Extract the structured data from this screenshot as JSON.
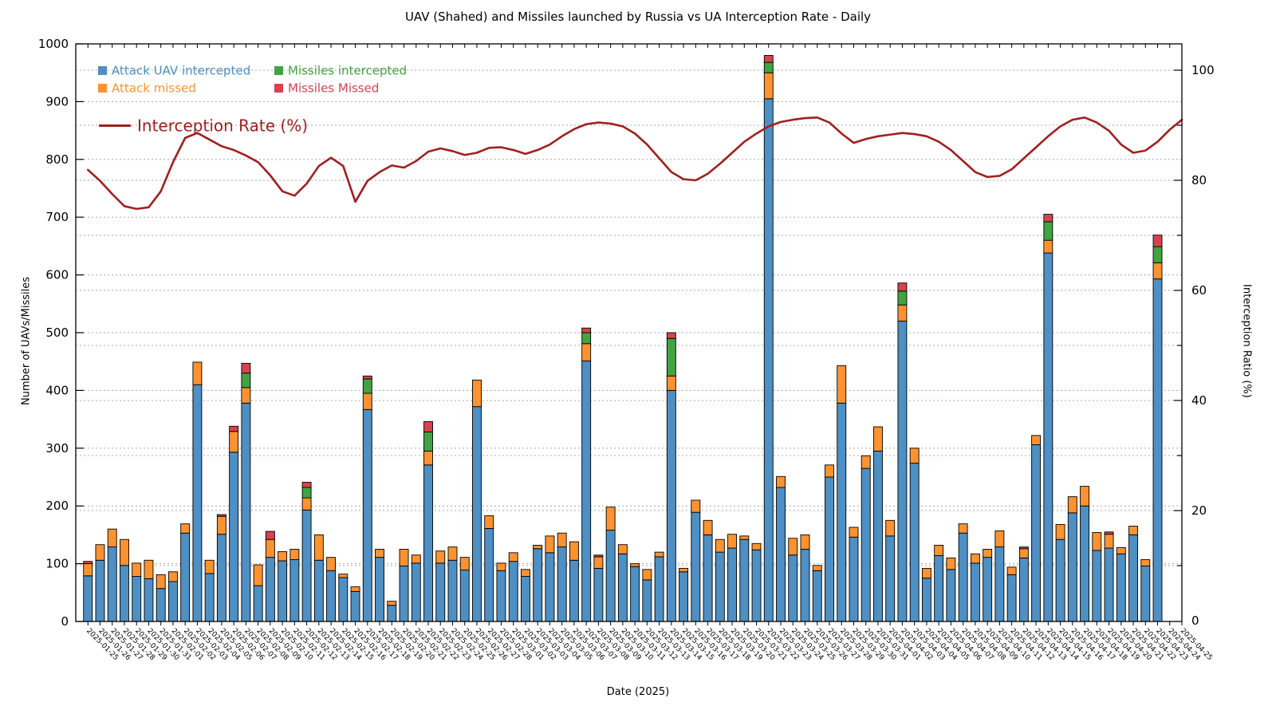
{
  "chart_data": {
    "type": "bar",
    "stacked": true,
    "title": "UAV (Shahed) and Missiles launched by Russia vs UA Interception Rate - Daily",
    "xlabel": "Date (2025)",
    "ylabel_left": "Number of UAVs/Missiles",
    "ylabel_right": "Interception Ratio (%)",
    "ylim_left": [
      0,
      1000
    ],
    "ylim_right": [
      0,
      100
    ],
    "grid": "dotted, horizontal, both axes",
    "legend_position": "top-left inside plot",
    "dates": [
      "2025-01-25",
      "2025-01-26",
      "2025-01-27",
      "2025-01-28",
      "2025-01-29",
      "2025-01-30",
      "2025-01-31",
      "2025-02-01",
      "2025-02-02",
      "2025-02-03",
      "2025-02-04",
      "2025-02-05",
      "2025-02-06",
      "2025-02-07",
      "2025-02-08",
      "2025-02-09",
      "2025-02-10",
      "2025-02-11",
      "2025-02-12",
      "2025-02-13",
      "2025-02-14",
      "2025-02-15",
      "2025-02-16",
      "2025-02-17",
      "2025-02-18",
      "2025-02-19",
      "2025-02-20",
      "2025-02-21",
      "2025-02-22",
      "2025-02-23",
      "2025-02-24",
      "2025-02-25",
      "2025-02-26",
      "2025-02-27",
      "2025-02-28",
      "2025-03-01",
      "2025-03-02",
      "2025-03-03",
      "2025-03-04",
      "2025-03-05",
      "2025-03-06",
      "2025-03-07",
      "2025-03-08",
      "2025-03-09",
      "2025-03-10",
      "2025-03-11",
      "2025-03-12",
      "2025-03-13",
      "2025-03-14",
      "2025-03-15",
      "2025-03-16",
      "2025-03-17",
      "2025-03-18",
      "2025-03-19",
      "2025-03-20",
      "2025-03-21",
      "2025-03-22",
      "2025-03-23",
      "2025-03-24",
      "2025-03-25",
      "2025-03-26",
      "2025-03-27",
      "2025-03-28",
      "2025-03-29",
      "2025-03-30",
      "2025-03-31",
      "2025-04-01",
      "2025-04-02",
      "2025-04-03",
      "2025-04-04",
      "2025-04-05",
      "2025-04-06",
      "2025-04-07",
      "2025-04-08",
      "2025-04-09",
      "2025-04-10",
      "2025-04-11",
      "2025-04-12",
      "2025-04-13",
      "2025-04-14",
      "2025-04-15",
      "2025-04-16",
      "2025-04-17",
      "2025-04-18",
      "2025-04-19",
      "2025-04-20",
      "2025-04-21",
      "2025-04-22",
      "2025-04-23",
      "2025-04-24",
      "2025-04-25"
    ],
    "series": [
      {
        "name": "Attack UAV intercepted",
        "color": "#4e8fc4",
        "values": [
          79,
          106,
          129,
          97,
          78,
          74,
          57,
          69,
          153,
          410,
          83,
          151,
          293,
          378,
          62,
          111,
          105,
          107,
          193,
          106,
          88,
          76,
          52,
          367,
          111,
          28,
          96,
          101,
          271,
          101,
          106,
          89,
          372,
          161,
          88,
          104,
          78,
          126,
          119,
          129,
          106,
          451,
          92,
          158,
          117,
          95,
          72,
          112,
          400,
          86,
          189,
          150,
          120,
          127,
          142,
          124,
          905,
          232,
          115,
          125,
          88,
          250,
          378,
          146,
          265,
          295,
          148,
          520,
          274,
          75,
          114,
          90,
          153,
          101,
          111,
          129,
          81,
          110,
          306,
          638,
          142,
          188,
          200,
          123,
          127,
          117,
          150,
          96,
          593,
          0,
          0
        ]
      },
      {
        "name": "Attack missed",
        "color": "#fd9231",
        "values": [
          21,
          27,
          31,
          45,
          23,
          32,
          24,
          17,
          16,
          39,
          23,
          31,
          36,
          27,
          36,
          31,
          16,
          18,
          21,
          44,
          23,
          6,
          8,
          28,
          14,
          7,
          29,
          14,
          24,
          21,
          23,
          22,
          46,
          22,
          13,
          15,
          12,
          6,
          29,
          24,
          32,
          30,
          20,
          40,
          16,
          5,
          18,
          8,
          25,
          6,
          21,
          25,
          22,
          24,
          6,
          11,
          45,
          19,
          29,
          25,
          9,
          21,
          65,
          17,
          22,
          42,
          27,
          28,
          26,
          17,
          18,
          20,
          16,
          16,
          14,
          28,
          13,
          16,
          16,
          22,
          26,
          28,
          34,
          31,
          24,
          11,
          15,
          11,
          28,
          0,
          0
        ]
      },
      {
        "name": "Missiles intercepted",
        "color": "#42a342",
        "values": [
          0,
          0,
          0,
          0,
          0,
          0,
          0,
          0,
          0,
          0,
          0,
          0,
          0,
          25,
          0,
          0,
          0,
          0,
          18,
          0,
          0,
          0,
          0,
          25,
          0,
          0,
          0,
          0,
          33,
          0,
          0,
          0,
          0,
          0,
          0,
          0,
          0,
          0,
          0,
          0,
          0,
          19,
          0,
          0,
          0,
          0,
          0,
          0,
          65,
          0,
          0,
          0,
          0,
          0,
          0,
          0,
          18,
          0,
          0,
          0,
          0,
          0,
          0,
          0,
          0,
          0,
          0,
          24,
          0,
          0,
          0,
          0,
          0,
          0,
          0,
          0,
          0,
          0,
          0,
          32,
          0,
          0,
          0,
          0,
          0,
          0,
          0,
          0,
          28,
          0,
          0
        ]
      },
      {
        "name": "Missiles Missed",
        "color": "#d6434e",
        "values": [
          4,
          0,
          0,
          0,
          0,
          0,
          0,
          0,
          0,
          0,
          0,
          3,
          9,
          17,
          0,
          14,
          0,
          0,
          9,
          0,
          0,
          0,
          0,
          5,
          0,
          0,
          0,
          0,
          18,
          0,
          0,
          0,
          0,
          0,
          0,
          0,
          0,
          0,
          0,
          0,
          0,
          8,
          3,
          0,
          0,
          0,
          0,
          0,
          10,
          0,
          0,
          0,
          0,
          0,
          0,
          0,
          12,
          0,
          0,
          0,
          0,
          0,
          0,
          0,
          0,
          0,
          0,
          14,
          0,
          0,
          0,
          0,
          0,
          0,
          0,
          0,
          0,
          3,
          0,
          13,
          0,
          0,
          0,
          0,
          4,
          0,
          0,
          0,
          20,
          0,
          0
        ]
      }
    ],
    "line": {
      "name": "Interception Rate (%)",
      "color": "#a02020",
      "values": [
        81.9,
        79.9,
        77.5,
        75.3,
        74.8,
        75.1,
        78.0,
        83.3,
        87.7,
        88.6,
        87.4,
        86.2,
        85.5,
        84.5,
        83.3,
        80.9,
        78.0,
        77.2,
        79.4,
        82.6,
        84.1,
        82.6,
        76.1,
        79.9,
        81.5,
        82.7,
        82.3,
        83.5,
        85.2,
        85.8,
        85.3,
        84.6,
        85.0,
        85.9,
        86.0,
        85.5,
        84.8,
        85.5,
        86.5,
        88.0,
        89.3,
        90.2,
        90.5,
        90.3,
        89.8,
        88.5,
        86.5,
        84.0,
        81.5,
        80.2,
        80.0,
        81.2,
        83.0,
        85.0,
        87.0,
        88.5,
        89.8,
        90.6,
        91.0,
        91.3,
        91.4,
        90.5,
        88.5,
        86.8,
        87.5,
        88.0,
        88.3,
        88.6,
        88.4,
        88.0,
        87.0,
        85.5,
        83.5,
        81.5,
        80.6,
        80.8,
        82.0,
        84.0,
        86.0,
        88.0,
        89.8,
        91.0,
        91.4,
        90.5,
        89.0,
        86.5,
        85.0,
        85.4,
        87.0,
        89.2,
        91.0
      ]
    },
    "y_ticks_left": [
      0,
      100,
      200,
      300,
      400,
      500,
      600,
      700,
      800,
      900,
      1000
    ],
    "y_ticks_right": [
      0,
      20,
      40,
      60,
      80,
      100
    ]
  }
}
